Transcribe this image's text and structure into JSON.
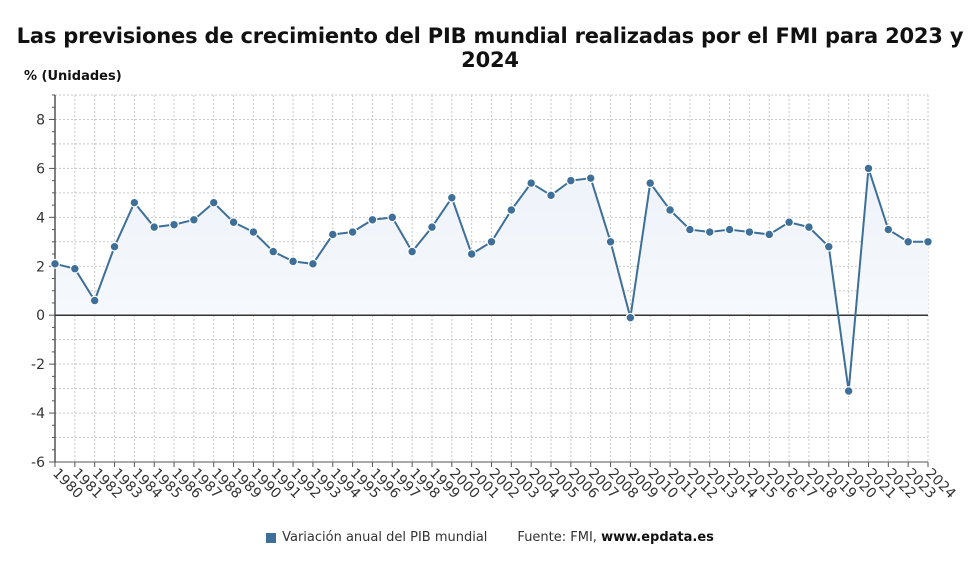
{
  "chart_data": {
    "type": "line",
    "title": "Las previsiones de crecimiento del PIB mundial realizadas por el FMI para 2023 y 2024",
    "ylabel": "% (Unidades)",
    "xlabel": "",
    "ylim": [
      -6,
      9
    ],
    "yticks": [
      -6,
      -4,
      -2,
      0,
      2,
      4,
      6,
      8
    ],
    "grid": true,
    "legend_placement": "bottom",
    "categories": [
      "1980",
      "1981",
      "1982",
      "1983",
      "1984",
      "1985",
      "1986",
      "1987",
      "1988",
      "1989",
      "1990",
      "1991",
      "1992",
      "1993",
      "1994",
      "1995",
      "1996",
      "1997",
      "1998",
      "1999",
      "2000",
      "2001",
      "2002",
      "2003",
      "2004",
      "2005",
      "2006",
      "2007",
      "2008",
      "2009",
      "2010",
      "2011",
      "2012",
      "2013",
      "2014",
      "2015",
      "2016",
      "2017",
      "2018",
      "2019",
      "2020",
      "2021",
      "2022",
      "2023",
      "2024"
    ],
    "series": [
      {
        "name": "Variación anual del PIB mundial",
        "color": "#3d6f99",
        "values": [
          2.1,
          1.9,
          0.6,
          2.8,
          4.6,
          3.6,
          3.7,
          3.9,
          4.6,
          3.8,
          3.4,
          2.6,
          2.2,
          2.1,
          3.3,
          3.4,
          3.9,
          4.0,
          2.6,
          3.6,
          4.8,
          2.5,
          3.0,
          4.3,
          5.4,
          4.9,
          5.5,
          5.6,
          3.0,
          -0.1,
          5.4,
          4.3,
          3.5,
          3.4,
          3.5,
          3.4,
          3.3,
          3.8,
          3.6,
          2.8,
          -3.1,
          6.0,
          3.5,
          3.0,
          3.0
        ]
      }
    ]
  },
  "footer": {
    "legend_label": "Variación anual del PIB mundial",
    "source_prefix": "Fuente: FMI,",
    "source_brand": "www.epdata.es"
  }
}
